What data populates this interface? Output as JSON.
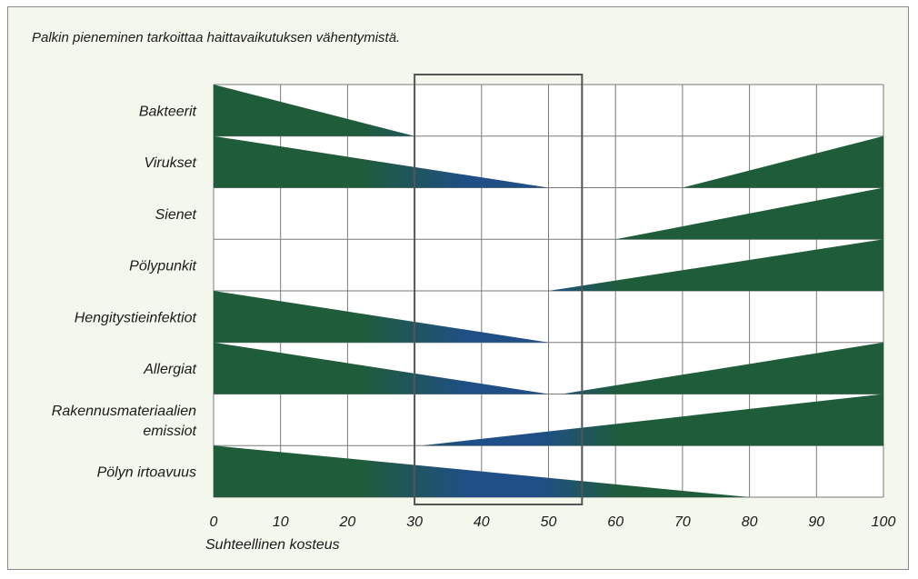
{
  "note": "Palkin pieneminen tarkoittaa haittavaikutuksen vähentymistä.",
  "chart_data": {
    "type": "area",
    "title": "",
    "xlabel": "Suhteellinen kosteus",
    "ylabel": "",
    "xlim": [
      0,
      100
    ],
    "xticks": [
      0,
      10,
      20,
      30,
      40,
      50,
      60,
      70,
      80,
      90,
      100
    ],
    "grid": true,
    "optimal_zone": [
      30,
      55
    ],
    "categories": [
      {
        "lines": [
          "Bakteerit"
        ],
        "segments": [
          {
            "from": 0,
            "to": 30,
            "direction": "decreasing"
          }
        ]
      },
      {
        "lines": [
          "Virukset"
        ],
        "segments": [
          {
            "from": 0,
            "to": 50,
            "direction": "decreasing"
          },
          {
            "from": 70,
            "to": 100,
            "direction": "increasing"
          }
        ]
      },
      {
        "lines": [
          "Sienet"
        ],
        "segments": [
          {
            "from": 60,
            "to": 100,
            "direction": "increasing"
          }
        ]
      },
      {
        "lines": [
          "Pölypunkit"
        ],
        "segments": [
          {
            "from": 50,
            "to": 100,
            "direction": "increasing"
          }
        ]
      },
      {
        "lines": [
          "Hengitystieinfektiot"
        ],
        "segments": [
          {
            "from": 0,
            "to": 50,
            "direction": "decreasing"
          }
        ]
      },
      {
        "lines": [
          "Allergiat"
        ],
        "segments": [
          {
            "from": 0,
            "to": 50,
            "direction": "decreasing"
          },
          {
            "from": 52,
            "to": 100,
            "direction": "increasing"
          }
        ]
      },
      {
        "lines": [
          "Rakennusmateriaalien",
          "emissiot"
        ],
        "segments": [
          {
            "from": 31,
            "to": 100,
            "direction": "increasing"
          }
        ]
      },
      {
        "lines": [
          "Pölyn irtoavuus"
        ],
        "segments": [
          {
            "from": 0,
            "to": 80,
            "direction": "decreasing"
          }
        ]
      }
    ],
    "colors": {
      "bar": "#1f5c3a",
      "bar_in_zone": "#1f4f86",
      "grid": "#7a7a7a",
      "zone_border": "#555555"
    }
  }
}
